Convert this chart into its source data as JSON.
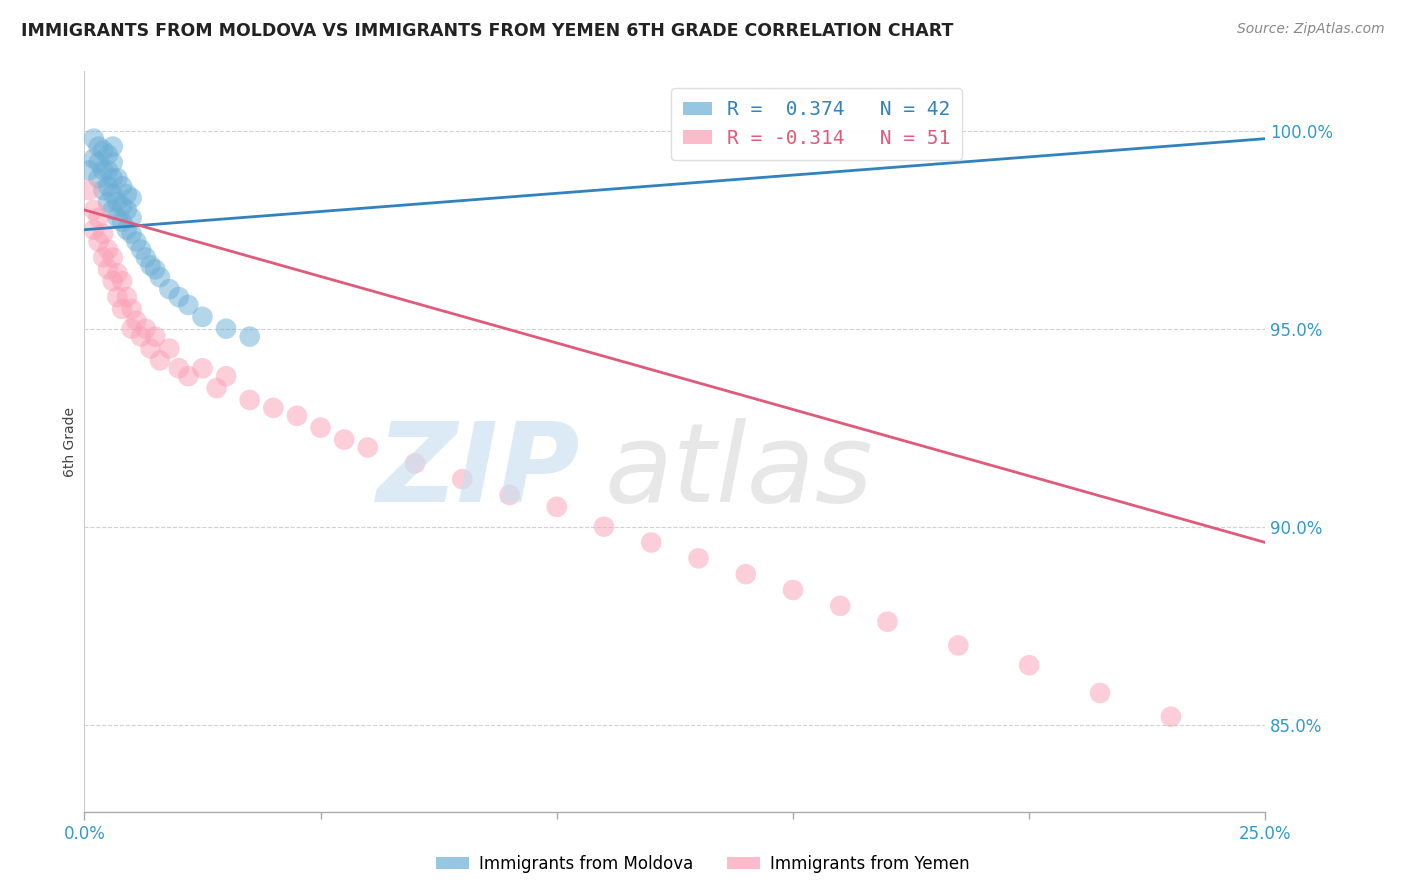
{
  "title": "IMMIGRANTS FROM MOLDOVA VS IMMIGRANTS FROM YEMEN 6TH GRADE CORRELATION CHART",
  "source": "Source: ZipAtlas.com",
  "ylabel": "6th Grade",
  "ytick_labels": [
    "100.0%",
    "95.0%",
    "90.0%",
    "85.0%"
  ],
  "ytick_values": [
    1.0,
    0.95,
    0.9,
    0.85
  ],
  "xlim": [
    0.0,
    0.25
  ],
  "ylim": [
    0.828,
    1.015
  ],
  "color_moldova": "#6baed6",
  "color_yemen": "#fa9fb5",
  "line_color_moldova": "#3182bd",
  "line_color_yemen": "#e05a7a",
  "legend_r_moldova": "R =  0.374",
  "legend_n_moldova": "N = 42",
  "legend_r_yemen": "R = -0.314",
  "legend_n_yemen": "N = 51",
  "moldova_x": [
    0.001,
    0.002,
    0.002,
    0.003,
    0.003,
    0.003,
    0.004,
    0.004,
    0.004,
    0.005,
    0.005,
    0.005,
    0.005,
    0.006,
    0.006,
    0.006,
    0.006,
    0.006,
    0.007,
    0.007,
    0.007,
    0.008,
    0.008,
    0.008,
    0.009,
    0.009,
    0.009,
    0.01,
    0.01,
    0.01,
    0.011,
    0.012,
    0.013,
    0.014,
    0.015,
    0.016,
    0.018,
    0.02,
    0.022,
    0.025,
    0.03,
    0.035
  ],
  "moldova_y": [
    0.99,
    0.993,
    0.998,
    0.988,
    0.992,
    0.996,
    0.985,
    0.99,
    0.995,
    0.982,
    0.986,
    0.99,
    0.994,
    0.98,
    0.984,
    0.988,
    0.992,
    0.996,
    0.978,
    0.982,
    0.988,
    0.977,
    0.981,
    0.986,
    0.975,
    0.98,
    0.984,
    0.974,
    0.978,
    0.983,
    0.972,
    0.97,
    0.968,
    0.966,
    0.965,
    0.963,
    0.96,
    0.958,
    0.956,
    0.953,
    0.95,
    0.948
  ],
  "yemen_x": [
    0.001,
    0.002,
    0.002,
    0.003,
    0.003,
    0.004,
    0.004,
    0.005,
    0.005,
    0.006,
    0.006,
    0.007,
    0.007,
    0.008,
    0.008,
    0.009,
    0.01,
    0.01,
    0.011,
    0.012,
    0.013,
    0.014,
    0.015,
    0.016,
    0.018,
    0.02,
    0.022,
    0.025,
    0.028,
    0.03,
    0.035,
    0.04,
    0.045,
    0.05,
    0.055,
    0.06,
    0.07,
    0.08,
    0.09,
    0.1,
    0.11,
    0.12,
    0.13,
    0.14,
    0.15,
    0.16,
    0.17,
    0.185,
    0.2,
    0.215,
    0.23
  ],
  "yemen_y": [
    0.985,
    0.98,
    0.975,
    0.978,
    0.972,
    0.974,
    0.968,
    0.97,
    0.965,
    0.968,
    0.962,
    0.964,
    0.958,
    0.962,
    0.955,
    0.958,
    0.955,
    0.95,
    0.952,
    0.948,
    0.95,
    0.945,
    0.948,
    0.942,
    0.945,
    0.94,
    0.938,
    0.94,
    0.935,
    0.938,
    0.932,
    0.93,
    0.928,
    0.925,
    0.922,
    0.92,
    0.916,
    0.912,
    0.908,
    0.905,
    0.9,
    0.896,
    0.892,
    0.888,
    0.884,
    0.88,
    0.876,
    0.87,
    0.865,
    0.858,
    0.852
  ],
  "moldova_line_x": [
    0.0,
    0.25
  ],
  "moldova_line_y": [
    0.975,
    0.998
  ],
  "yemen_line_x": [
    0.0,
    0.25
  ],
  "yemen_line_y": [
    0.98,
    0.896
  ]
}
